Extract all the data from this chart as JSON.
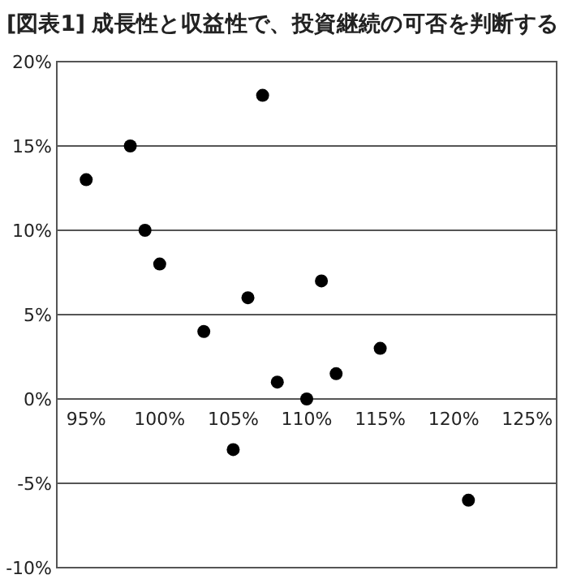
{
  "chart_data": {
    "type": "scatter",
    "title": "[図表1] 成長性と収益性で、投資継続の可否を判断する",
    "x": [
      95,
      98,
      99,
      100,
      103,
      105,
      107,
      106,
      108,
      110,
      111,
      112,
      115,
      121
    ],
    "values": [
      13,
      15,
      10,
      8,
      4,
      -3,
      18,
      6,
      1,
      0,
      7,
      1.5,
      3,
      -6
    ],
    "color": "#000000",
    "marker": "circle",
    "xlim": [
      93,
      127
    ],
    "ylim": [
      -10,
      20
    ],
    "xticks": [
      {
        "value": 95,
        "label": "95%"
      },
      {
        "value": 100,
        "label": "100%"
      },
      {
        "value": 105,
        "label": "105%"
      },
      {
        "value": 110,
        "label": "110%"
      },
      {
        "value": 115,
        "label": "115%"
      },
      {
        "value": 120,
        "label": "120%"
      },
      {
        "value": 125,
        "label": "125%"
      }
    ],
    "yticks": [
      {
        "value": -10,
        "label": "-10%"
      },
      {
        "value": -5,
        "label": "-5%"
      },
      {
        "value": 0,
        "label": "0%"
      },
      {
        "value": 5,
        "label": "5%"
      },
      {
        "value": 10,
        "label": "10%"
      },
      {
        "value": 15,
        "label": "15%"
      },
      {
        "value": 20,
        "label": "20%"
      }
    ],
    "grid": "y"
  }
}
